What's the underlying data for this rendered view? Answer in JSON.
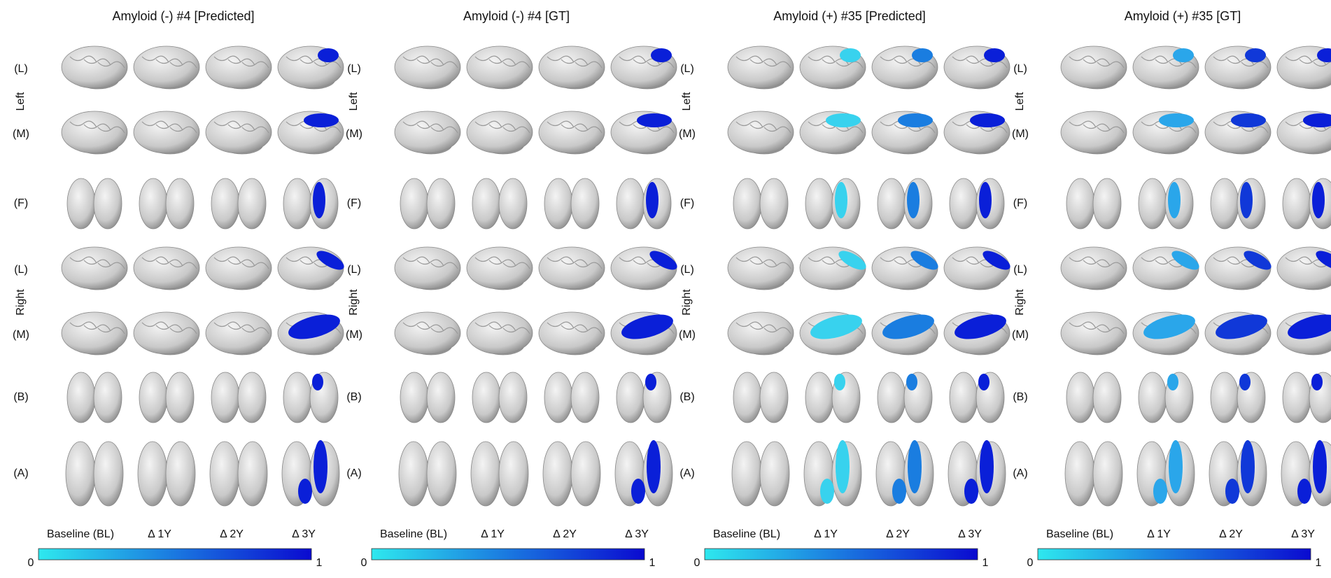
{
  "panels": [
    {
      "title": "Amyloid (-) #4 [Predicted]",
      "row_labels": [
        "(L)",
        "(M)",
        "(F)",
        "(L)",
        "(M)",
        "(B)",
        "(A)"
      ],
      "side_labels": [
        "Left",
        "Right"
      ],
      "column_labels": [
        "Baseline (BL)",
        "Δ 1Y",
        "Δ 2Y",
        "Δ 3Y"
      ],
      "colorbar": {
        "min": 0,
        "max": 1
      }
    },
    {
      "title": "Amyloid (-) #4 [GT]",
      "row_labels": [
        "(L)",
        "(M)",
        "(F)",
        "(L)",
        "(M)",
        "(B)",
        "(A)"
      ],
      "side_labels": [
        "Left",
        "Right"
      ],
      "column_labels": [
        "Baseline (BL)",
        "Δ 1Y",
        "Δ 2Y",
        "Δ 3Y"
      ],
      "colorbar": {
        "min": 0,
        "max": 1
      }
    },
    {
      "title": "Amyloid (+) #35 [Predicted]",
      "row_labels": [
        "(L)",
        "(M)",
        "(F)",
        "(L)",
        "(M)",
        "(B)",
        "(A)"
      ],
      "side_labels": [
        "Left",
        "Right"
      ],
      "column_labels": [
        "Baseline (BL)",
        "Δ 1Y",
        "Δ 2Y",
        "Δ 3Y"
      ],
      "colorbar": {
        "min": 0,
        "max": 1
      }
    },
    {
      "title": "Amyloid (+) #35 [GT]",
      "row_labels": [
        "(L)",
        "(M)",
        "(F)",
        "(L)",
        "(M)",
        "(B)",
        "(A)"
      ],
      "side_labels": [
        "Left",
        "Right"
      ],
      "column_labels": [
        "Baseline (BL)",
        "Δ 1Y",
        "Δ 2Y",
        "Δ 3Y"
      ],
      "colorbar": {
        "min": 0,
        "max": 1
      }
    }
  ]
}
